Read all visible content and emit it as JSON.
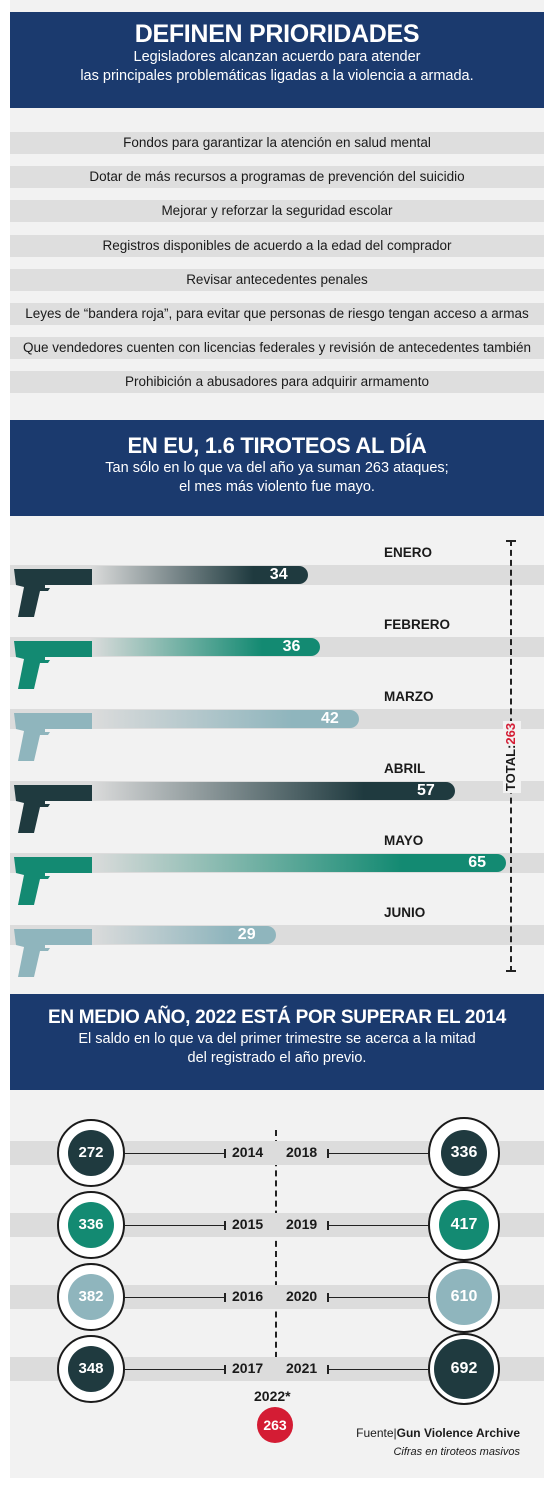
{
  "section1": {
    "title": "DEFINEN PRIORIDADES",
    "subtitle_line1": "Legisladores alcanzan acuerdo para atender",
    "subtitle_line2": "las principales problemáticas ligadas a la violencia a armada.",
    "priorities": [
      "Fondos para garantizar la atención en salud mental",
      "Dotar de más recursos a programas de prevención del suicidio",
      "Mejorar y reforzar la seguridad escolar",
      "Registros disponibles de acuerdo a la edad del comprador",
      "Revisar antecedentes penales",
      "Leyes de “bandera roja”, para evitar que personas de riesgo tengan acceso a armas",
      "Que vendedores cuenten con licencias federales y revisión de antecedentes también",
      "Prohibición a abusadores para adquirir armamento"
    ]
  },
  "section2": {
    "title": "EN EU, 1.6 TIROTEOS AL DÍA",
    "subtitle_line1": "Tan sólo en lo que va del año ya suman 263 ataques;",
    "subtitle_line2": "el mes más violento fue mayo.",
    "total_label": "TOTAL:",
    "total_value": "263"
  },
  "chart_data": {
    "type": "bar",
    "categories": [
      "ENERO",
      "FEBRERO",
      "MARZO",
      "ABRIL",
      "MAYO",
      "JUNIO"
    ],
    "values": [
      34,
      36,
      42,
      57,
      65,
      29
    ],
    "colors": [
      "#1f3a3f",
      "#138a72",
      "#8fb5bd",
      "#1f3a3f",
      "#138a72",
      "#8fb5bd"
    ]
  },
  "section3": {
    "title": "EN MEDIO AÑO, 2022 ESTÁ POR SUPERAR EL 2014",
    "subtitle_line1": "El saldo en lo que va del primer trimestre se acerca a la mitad",
    "subtitle_line2": "del registrado el año previo.",
    "left_years": [
      {
        "year": "2014",
        "value": "272",
        "color": "#1f3a3f"
      },
      {
        "year": "2015",
        "value": "336",
        "color": "#138a72"
      },
      {
        "year": "2016",
        "value": "382",
        "color": "#8fb5bd"
      },
      {
        "year": "2017",
        "value": "348",
        "color": "#1f3a3f"
      }
    ],
    "right_years": [
      {
        "year": "2018",
        "value": "336",
        "color": "#1f3a3f"
      },
      {
        "year": "2019",
        "value": "417",
        "color": "#138a72"
      },
      {
        "year": "2020",
        "value": "610",
        "color": "#8fb5bd"
      },
      {
        "year": "2021",
        "value": "692",
        "color": "#1f3a3f"
      }
    ],
    "current_year": "2022*",
    "current_value": "263",
    "source_label": "Fuente|",
    "source_name": "Gun Violence Archive",
    "note": "Cifras en tiroteos masivos"
  }
}
